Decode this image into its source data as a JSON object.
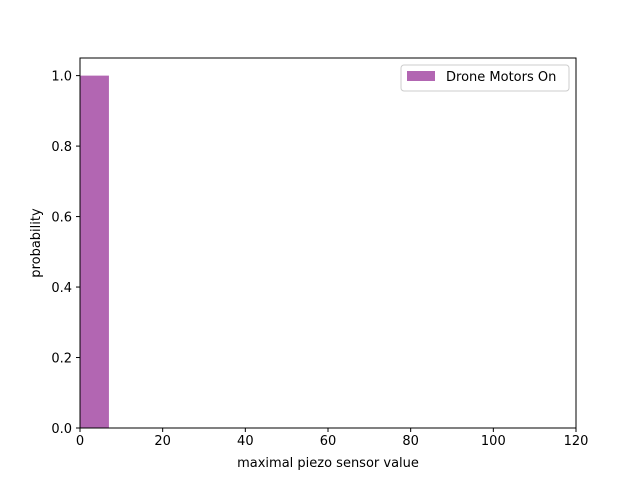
{
  "chart_data": {
    "type": "bar",
    "title": "",
    "xlabel": "maximal piezo sensor value",
    "ylabel": "probability",
    "xlim": [
      0,
      120
    ],
    "ylim": [
      0,
      1.05
    ],
    "x_ticks": [
      0,
      20,
      40,
      60,
      80,
      100,
      120
    ],
    "x_tick_labels": [
      "0",
      "20",
      "40",
      "60",
      "80",
      "100",
      "120"
    ],
    "y_ticks": [
      0.0,
      0.2,
      0.4,
      0.6,
      0.8,
      1.0
    ],
    "y_tick_labels": [
      "0.0",
      "0.2",
      "0.4",
      "0.6",
      "0.8",
      "1.0"
    ],
    "grid": false,
    "legend_position": "top-right",
    "series": [
      {
        "name": "Drone Motors On",
        "color": "#b266b2",
        "bins": [
          {
            "x_start": 0,
            "x_end": 7,
            "value": 1.0
          }
        ]
      }
    ]
  }
}
